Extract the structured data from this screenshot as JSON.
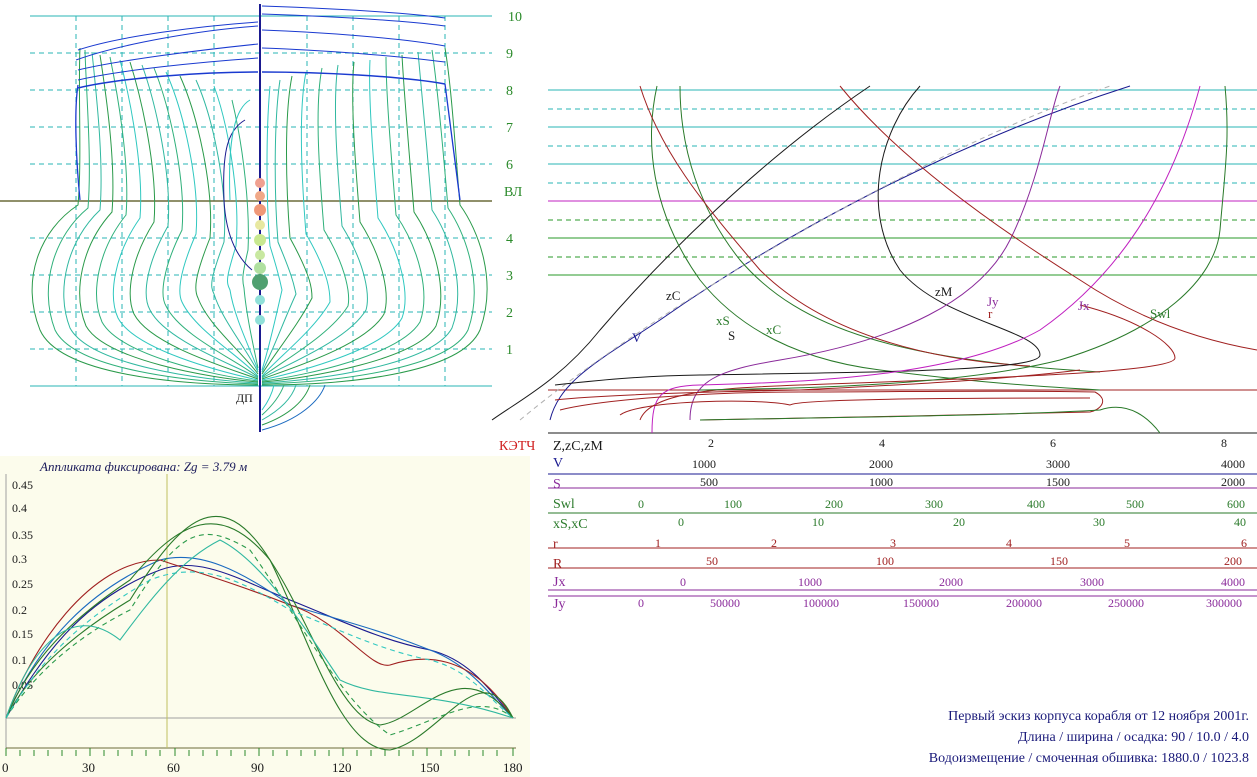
{
  "body_plan": {
    "waterline_labels": [
      "10",
      "9",
      "8",
      "7",
      "6",
      "ВЛ",
      "4",
      "3",
      "2",
      "1"
    ],
    "dp_label": "ДП"
  },
  "hydrostatics": {
    "title_label": "КЭТЧ",
    "axis_label": "Z,zC,zM",
    "axis_ticks": [
      "2",
      "4",
      "6",
      "8"
    ],
    "curve_labels": {
      "zC": "zC",
      "V": "V",
      "xS": "xS",
      "S": "S",
      "xC": "xC",
      "zM": "zM",
      "Jy": "Jy",
      "r": "r",
      "Jx": "Jx",
      "Swl": "Swl"
    },
    "scales": [
      {
        "name": "V",
        "color": "#1a1a90",
        "ticks": [
          "1000",
          "2000",
          "3000",
          "4000"
        ],
        "ticks2": []
      },
      {
        "name": "S",
        "color": "#8a2a9a",
        "ticks": [
          "500",
          "1000",
          "1500",
          "2000"
        ],
        "ticks2": []
      },
      {
        "name": "Swl",
        "color": "#2a7a2a",
        "ticks": [
          "0",
          "100",
          "200",
          "300",
          "400",
          "500",
          "600"
        ],
        "ticks2": []
      },
      {
        "name": "xS,xC",
        "color": "#2a7a2a",
        "ticks": [
          "0",
          "10",
          "20",
          "30",
          "40"
        ],
        "ticks2": []
      },
      {
        "name": "r",
        "color": "#a02020",
        "ticks": [
          "1",
          "2",
          "3",
          "4",
          "5",
          "6"
        ],
        "ticks2": []
      },
      {
        "name": "R",
        "color": "#a02020",
        "ticks": [
          "50",
          "100",
          "150",
          "200"
        ],
        "ticks2": []
      },
      {
        "name": "Jx",
        "color": "#8a2a9a",
        "ticks": [
          "0",
          "1000",
          "2000",
          "3000",
          "4000"
        ],
        "ticks2": []
      },
      {
        "name": "Jy",
        "color": "#8a2a9a",
        "ticks": [
          "0",
          "50000",
          "100000",
          "150000",
          "200000",
          "250000",
          "300000"
        ],
        "ticks2": []
      }
    ]
  },
  "stability": {
    "title": "Аппликата фиксирована: Zg = 3.79 м",
    "y_ticks": [
      "0.45",
      "0.4",
      "0.35",
      "0.3",
      "0.25",
      "0.2",
      "0.15",
      "0.1",
      "0.05"
    ],
    "x_ticks": [
      "0",
      "30",
      "60",
      "90",
      "120",
      "150",
      "180"
    ]
  },
  "info": {
    "line1": "Первый эскиз корпуса корабля от 12 ноября 2001г.",
    "line2": "Длина / ширина / осадка:  90 / 10.0 / 4.0",
    "line3": "Водоизмещение / смоченная обшивка:  1880.0 / 1023.8"
  }
}
